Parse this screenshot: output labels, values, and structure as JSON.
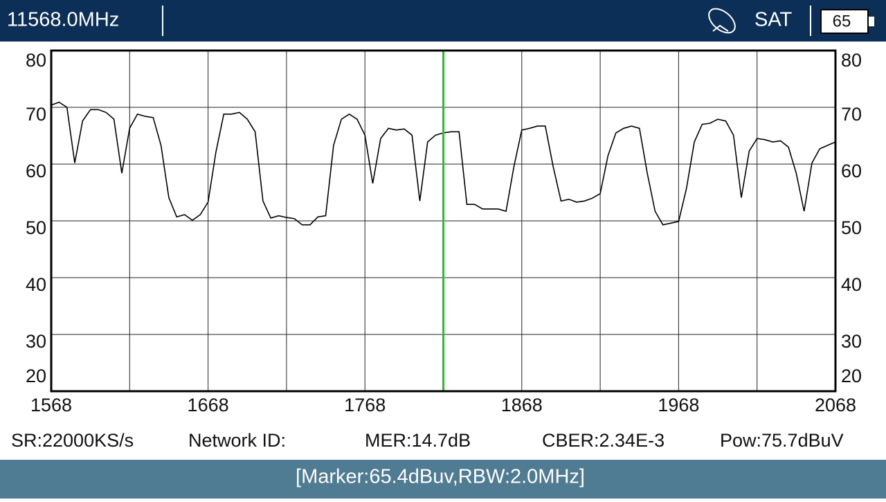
{
  "header": {
    "frequency": "11568.0MHz",
    "mode": "SAT",
    "battery": "65"
  },
  "info": [
    "SR:22000KS/s",
    "Network ID:",
    "MER:14.7dB",
    "CBER:2.34E-3",
    "Pow:75.7dBuV"
  ],
  "footer": "[Marker:65.4dBuv,RBW:2.0MHz]",
  "chart_data": {
    "type": "line",
    "x": [
      1568,
      1573,
      1578,
      1583,
      1588,
      1593,
      1598,
      1603,
      1608,
      1613,
      1618,
      1623,
      1628,
      1633,
      1638,
      1643,
      1648,
      1653,
      1658,
      1663,
      1668,
      1673,
      1678,
      1683,
      1688,
      1693,
      1698,
      1703,
      1708,
      1713,
      1718,
      1723,
      1728,
      1733,
      1738,
      1743,
      1748,
      1753,
      1758,
      1763,
      1768,
      1773,
      1778,
      1783,
      1788,
      1793,
      1798,
      1803,
      1808,
      1813,
      1818,
      1823,
      1828,
      1833,
      1838,
      1843,
      1848,
      1853,
      1858,
      1863,
      1868,
      1873,
      1878,
      1883,
      1888,
      1893,
      1898,
      1903,
      1908,
      1913,
      1918,
      1923,
      1928,
      1933,
      1938,
      1943,
      1948,
      1953,
      1958,
      1963,
      1968,
      1973,
      1978,
      1983,
      1988,
      1993,
      1998,
      2003,
      2008,
      2013,
      2018,
      2023,
      2028,
      2033,
      2038,
      2043,
      2048,
      2053,
      2058,
      2063,
      2068
    ],
    "series": [
      {
        "color": "#000000",
        "values": [
          70.4,
          70.9,
          70.0,
          60.2,
          67.6,
          69.6,
          69.6,
          69.1,
          67.9,
          58.4,
          66.3,
          68.8,
          68.4,
          68.2,
          63.3,
          54.1,
          50.7,
          51.1,
          50.1,
          51.1,
          53.3,
          62.1,
          68.8,
          68.8,
          69.1,
          67.9,
          65.7,
          53.5,
          50.5,
          50.9,
          50.6,
          50.4,
          49.3,
          49.3,
          50.7,
          50.9,
          63.3,
          67.9,
          68.8,
          67.9,
          65.1,
          56.6,
          64.5,
          66.3,
          66.0,
          66.2,
          65.1,
          53.5,
          63.9,
          65.1,
          65.5,
          65.7,
          65.7,
          52.9,
          52.9,
          52.1,
          52.1,
          52.1,
          51.7,
          59.6,
          66.0,
          66.3,
          66.7,
          66.7,
          59.6,
          53.5,
          53.8,
          53.3,
          53.5,
          54.0,
          54.8,
          61.5,
          65.5,
          66.3,
          66.7,
          66.3,
          58.4,
          51.7,
          49.3,
          49.6,
          49.9,
          55.7,
          63.9,
          67.0,
          67.2,
          67.9,
          67.6,
          65.1,
          54.1,
          62.3,
          64.5,
          64.3,
          63.9,
          64.1,
          63.0,
          58.4,
          51.7,
          60.2,
          62.7,
          63.3,
          63.9
        ]
      }
    ],
    "xlim": [
      1568,
      2068
    ],
    "xticks": [
      1568,
      1668,
      1768,
      1868,
      1968,
      2068
    ],
    "ylim": [
      20,
      80
    ],
    "yticks": [
      20,
      30,
      40,
      50,
      60,
      70,
      80
    ],
    "grid": true,
    "marker": {
      "x": 1818,
      "color": "#00e000"
    }
  }
}
